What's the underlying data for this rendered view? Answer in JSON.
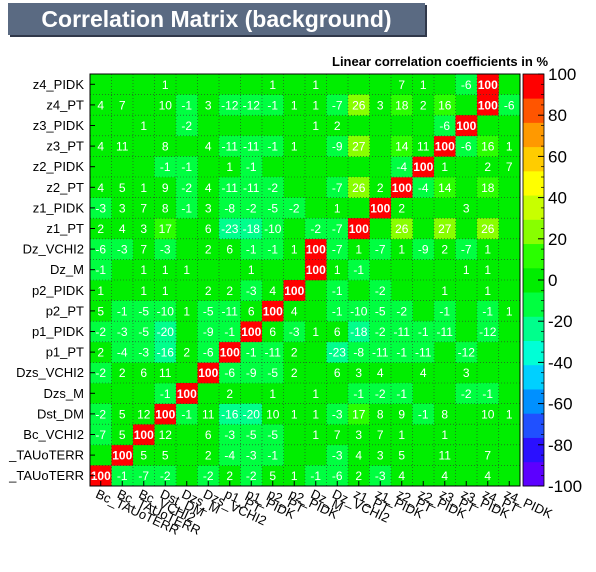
{
  "chart_data": {
    "type": "heatmap",
    "title": "Correlation Matrix (background)",
    "subtitle": "Linear correlation coefficients in %",
    "labels": [
      "Bc_TAUoTERR",
      "Bc_TAUoTERR",
      "Bc_VCHI2",
      "Dst_DM",
      "Dzs_M",
      "Dzs_VCHI2",
      "p1_PT",
      "p1_PIDK",
      "p2_PT",
      "p2_PIDK",
      "Dz_M",
      "Dz_VCHI2",
      "z1_PT",
      "z1_PIDK",
      "z2_PT",
      "z2_PIDK",
      "z3_PT",
      "z3_PIDK",
      "z4_PT",
      "z4_PIDK"
    ],
    "x_tick_labels": [
      "Bc_TAUoTERR",
      "Bc_TAUoTERR",
      "Bc_VCHI2",
      "Dst_DM",
      "Dzs_M",
      "Dzs_VCHI2",
      "p1_PT",
      "p1_PIDK",
      "p2_PT",
      "p2_PIDK",
      "Dz_M",
      "Dz_VCHI2",
      "z1_PT",
      "z1_PIDK",
      "z2_PT",
      "z2_PIDK",
      "z3_PT",
      "z3_PIDK",
      "z4_PT",
      "z4_PIDK"
    ],
    "y_tick_labels": [
      "_TAUoTERR",
      "_TAUoTERR",
      "Bc_VCHI2",
      "Dst_DM",
      "Dzs_M",
      "Dzs_VCHI2",
      "p1_PT",
      "p1_PIDK",
      "p2_PT",
      "p2_PIDK",
      "Dz_M",
      "Dz_VCHI2",
      "z1_PT",
      "z1_PIDK",
      "z2_PT",
      "z2_PIDK",
      "z3_PT",
      "z3_PIDK",
      "z4_PT",
      "z4_PIDK"
    ],
    "rows": [
      [
        100,
        -1,
        -7,
        -2,
        null,
        -2,
        2,
        -2,
        5,
        1,
        -1,
        -6,
        2,
        -3,
        4,
        null,
        4,
        null,
        4,
        null
      ],
      [
        null,
        100,
        5,
        5,
        null,
        2,
        -4,
        -3,
        -1,
        null,
        null,
        -3,
        4,
        3,
        5,
        null,
        11,
        null,
        7,
        null
      ],
      [
        -7,
        5,
        100,
        12,
        null,
        6,
        -3,
        -5,
        -5,
        null,
        1,
        7,
        3,
        7,
        1,
        null,
        1,
        null,
        null,
        null
      ],
      [
        -2,
        5,
        12,
        100,
        -1,
        11,
        -16,
        -20,
        10,
        1,
        1,
        -3,
        17,
        8,
        9,
        -1,
        8,
        null,
        10,
        1
      ],
      [
        null,
        null,
        null,
        -1,
        100,
        null,
        2,
        null,
        1,
        null,
        1,
        null,
        -1,
        -2,
        -1,
        null,
        null,
        -2,
        -1,
        null
      ],
      [
        -2,
        2,
        6,
        11,
        null,
        100,
        -6,
        -9,
        -5,
        2,
        null,
        6,
        3,
        4,
        null,
        4,
        null,
        3,
        null,
        null
      ],
      [
        2,
        -4,
        -3,
        -16,
        2,
        -6,
        100,
        -1,
        -11,
        2,
        null,
        -23,
        -8,
        -11,
        -1,
        -11,
        null,
        -12,
        null,
        null
      ],
      [
        -2,
        -3,
        -5,
        -20,
        null,
        -9,
        -1,
        100,
        6,
        -3,
        1,
        6,
        -18,
        -2,
        -11,
        -1,
        -11,
        null,
        -12,
        null
      ],
      [
        5,
        -1,
        -5,
        -10,
        1,
        -5,
        -11,
        6,
        100,
        4,
        null,
        -1,
        -10,
        -5,
        -2,
        null,
        -1,
        null,
        -1,
        1
      ],
      [
        1,
        null,
        1,
        1,
        null,
        2,
        2,
        -3,
        4,
        100,
        null,
        -1,
        null,
        -2,
        null,
        null,
        1,
        null,
        1,
        null
      ],
      [
        -1,
        null,
        1,
        1,
        1,
        null,
        null,
        1,
        null,
        null,
        100,
        1,
        -1,
        null,
        null,
        null,
        null,
        1,
        1,
        null
      ],
      [
        -6,
        -3,
        7,
        -3,
        null,
        2,
        6,
        -1,
        -1,
        1,
        100,
        -7,
        1,
        -7,
        1,
        -9,
        2,
        -7,
        1,
        null
      ],
      [
        2,
        4,
        3,
        17,
        null,
        6,
        -23,
        -18,
        -10,
        null,
        -2,
        -7,
        100,
        null,
        26,
        null,
        27,
        null,
        26,
        null
      ],
      [
        -3,
        3,
        7,
        8,
        -1,
        3,
        -8,
        -2,
        -5,
        -2,
        null,
        1,
        null,
        100,
        2,
        null,
        null,
        3,
        null,
        null
      ],
      [
        4,
        5,
        1,
        9,
        -2,
        4,
        -11,
        -11,
        -2,
        null,
        null,
        -7,
        26,
        2,
        100,
        -4,
        14,
        null,
        18,
        null
      ],
      [
        null,
        null,
        null,
        -1,
        -1,
        null,
        1,
        -1,
        null,
        null,
        null,
        null,
        null,
        null,
        -4,
        100,
        1,
        null,
        2,
        7
      ],
      [
        4,
        11,
        null,
        8,
        null,
        4,
        -11,
        -11,
        -1,
        1,
        null,
        -9,
        27,
        null,
        14,
        11,
        100,
        -6,
        16,
        1
      ],
      [
        null,
        null,
        1,
        null,
        -2,
        null,
        null,
        null,
        null,
        null,
        1,
        2,
        null,
        null,
        null,
        null,
        -6,
        100,
        null,
        null
      ],
      [
        4,
        7,
        null,
        10,
        -1,
        3,
        -12,
        -12,
        -1,
        1,
        1,
        -7,
        26,
        3,
        18,
        2,
        16,
        null,
        100,
        -6
      ],
      [
        null,
        null,
        null,
        1,
        null,
        null,
        null,
        null,
        1,
        null,
        1,
        null,
        null,
        null,
        7,
        1,
        null,
        -6,
        100,
        null
      ]
    ],
    "zlim": [
      -100,
      100
    ],
    "color_ticks": [
      100,
      80,
      60,
      40,
      20,
      0,
      -20,
      -40,
      -60,
      -80,
      -100
    ],
    "palette": [
      "#5c00ff",
      "#2a10ff",
      "#2050ff",
      "#0090ff",
      "#00d0ff",
      "#00ffd6",
      "#00ff8c",
      "#00ff40",
      "#00ee00",
      "#2aff00",
      "#88ff00",
      "#c8ff00",
      "#ffff00",
      "#ffcc00",
      "#ff9900",
      "#ff5500",
      "#ff0000"
    ],
    "grid": true
  }
}
